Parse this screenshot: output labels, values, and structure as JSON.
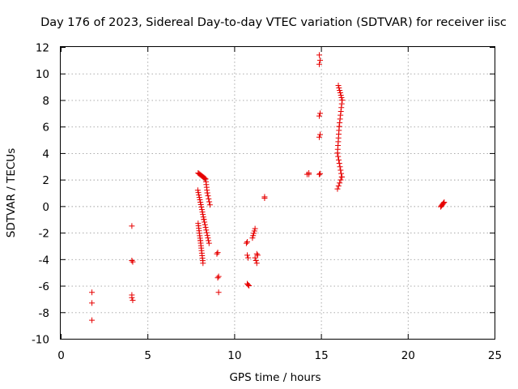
{
  "chart_data": {
    "type": "scatter",
    "title": "Day 176 of 2023, Sidereal Day-to-day VTEC variation (SDTVAR) for receiver iisc",
    "xlabel": "GPS time / hours",
    "ylabel": "SDTVAR / TECUs",
    "xlim": [
      0,
      25
    ],
    "ylim": [
      -10,
      12
    ],
    "xticks": [
      "0",
      "5",
      "10",
      "15",
      "20",
      "25"
    ],
    "yticks": [
      "-10",
      "-8",
      "-6",
      "-4",
      "-2",
      "0",
      "2",
      "4",
      "6",
      "8",
      "10",
      "12"
    ],
    "grid": true,
    "marker": "plus",
    "color": "#e60000",
    "segments": [
      {
        "from": [
          7.92,
          2.5
        ],
        "to": [
          8.35,
          2.05
        ],
        "n": 10
      },
      {
        "from": [
          8.35,
          2.05
        ],
        "to": [
          8.45,
          1.0
        ],
        "n": 6
      },
      {
        "from": [
          8.45,
          1.0
        ],
        "to": [
          8.6,
          0.1
        ],
        "n": 5
      },
      {
        "from": [
          7.9,
          1.2
        ],
        "to": [
          8.05,
          0.3
        ],
        "n": 6
      },
      {
        "from": [
          8.05,
          0.3
        ],
        "to": [
          8.25,
          -1.0
        ],
        "n": 8
      },
      {
        "from": [
          8.25,
          -1.0
        ],
        "to": [
          8.55,
          -2.8
        ],
        "n": 10
      },
      {
        "from": [
          7.92,
          -1.3
        ],
        "to": [
          8.05,
          -2.6
        ],
        "n": 8
      },
      {
        "from": [
          8.05,
          -2.6
        ],
        "to": [
          8.2,
          -4.3
        ],
        "n": 10
      },
      {
        "from": [
          11.2,
          -1.7
        ],
        "to": [
          11.05,
          -2.4
        ],
        "n": 5
      },
      {
        "from": [
          10.75,
          -5.85
        ],
        "to": [
          10.85,
          -6.0
        ],
        "n": 3
      },
      {
        "from": [
          16.0,
          9.1
        ],
        "to": [
          16.22,
          8.0
        ],
        "n": 7
      },
      {
        "from": [
          16.22,
          8.0
        ],
        "to": [
          16.05,
          6.0
        ],
        "n": 8
      },
      {
        "from": [
          16.05,
          6.0
        ],
        "to": [
          15.95,
          4.0
        ],
        "n": 8
      },
      {
        "from": [
          15.95,
          4.0
        ],
        "to": [
          16.2,
          2.2
        ],
        "n": 8
      },
      {
        "from": [
          16.2,
          2.2
        ],
        "to": [
          15.95,
          1.3
        ],
        "n": 5
      },
      {
        "from": [
          21.9,
          -0.05
        ],
        "to": [
          22.1,
          0.3
        ],
        "n": 6
      }
    ],
    "points": [
      [
        1.8,
        -6.5
      ],
      [
        1.8,
        -7.3
      ],
      [
        1.8,
        -8.6
      ],
      [
        4.1,
        -1.5
      ],
      [
        4.1,
        -4.1
      ],
      [
        4.15,
        -4.2
      ],
      [
        4.1,
        -6.7
      ],
      [
        4.1,
        -6.9
      ],
      [
        4.15,
        -7.1
      ],
      [
        9.05,
        -3.5
      ],
      [
        9.0,
        -3.6
      ],
      [
        9.1,
        -5.3
      ],
      [
        9.05,
        -5.4
      ],
      [
        9.1,
        -6.5
      ],
      [
        10.7,
        -2.8
      ],
      [
        10.75,
        -2.7
      ],
      [
        10.75,
        -3.7
      ],
      [
        10.8,
        -3.9
      ],
      [
        11.3,
        -3.6
      ],
      [
        11.35,
        -3.7
      ],
      [
        11.2,
        -3.9
      ],
      [
        11.25,
        -4.1
      ],
      [
        11.3,
        -4.3
      ],
      [
        11.75,
        0.6
      ],
      [
        11.75,
        0.7
      ],
      [
        14.2,
        2.4
      ],
      [
        14.3,
        2.5
      ],
      [
        14.3,
        2.4
      ],
      [
        14.9,
        2.4
      ],
      [
        14.95,
        2.45
      ],
      [
        14.9,
        5.2
      ],
      [
        14.95,
        5.4
      ],
      [
        14.9,
        6.8
      ],
      [
        14.95,
        7.0
      ],
      [
        14.9,
        10.7
      ],
      [
        14.95,
        11.0
      ],
      [
        14.9,
        11.4
      ]
    ]
  }
}
